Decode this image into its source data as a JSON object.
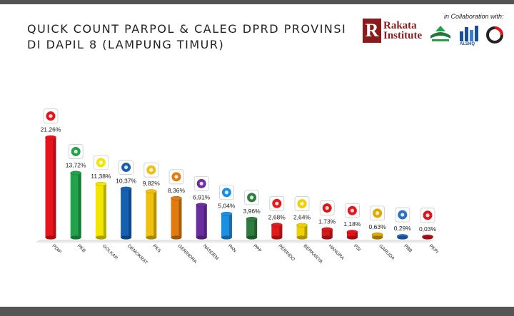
{
  "title": {
    "line1": "QUICK COUNT PARPOL & CALEG DPRD PROVINSI",
    "line2": "DI DAPIL 8 (LAMPUNG TIMUR)"
  },
  "branding": {
    "rakata_initial": "R",
    "rakata_line1": "Rakata",
    "rakata_line2": "Institute",
    "collaboration": "in Collaboration with:",
    "partner_small_text": "ALSHQ"
  },
  "chart_data": {
    "type": "bar",
    "title": "QUICK COUNT PARPOL & CALEG DPRD PROVINSI DI DAPIL 8 (LAMPUNG TIMUR)",
    "categories": [
      "PDIP",
      "PKB",
      "GOLKAR",
      "DEMOKRAT",
      "PKS",
      "GERINDRA",
      "NASDEM",
      "PAN",
      "PPP",
      "PERINDO",
      "BERKARYA",
      "HANURA",
      "PSI",
      "GARUDA",
      "PBB",
      "PKPI"
    ],
    "values": [
      21.26,
      13.72,
      11.38,
      10.37,
      9.82,
      8.36,
      6.91,
      5.04,
      3.96,
      2.68,
      2.64,
      1.73,
      1.18,
      0.63,
      0.29,
      0.03
    ],
    "labels": [
      "21,26%",
      "13,72%",
      "11,38%",
      "10,37%",
      "9,82%",
      "8,36%",
      "6,91%",
      "5,04%",
      "3,96%",
      "2,68%",
      "2,64%",
      "1,73%",
      "1,18%",
      "0,63%",
      "0,29%",
      "0,03%"
    ],
    "colors": [
      "#e8141b",
      "#22a24a",
      "#f2e600",
      "#1560b3",
      "#f0c010",
      "#e07b10",
      "#6a2ea0",
      "#1d8fe0",
      "#2e7d3e",
      "#e11a1a",
      "#f0d000",
      "#d61a1a",
      "#e8141b",
      "#e0a800",
      "#2a6fcc",
      "#e0141b"
    ],
    "logo_icons": [
      "pdip-bull-icon",
      "pkb-icon",
      "golkar-tree-icon",
      "demokrat-icon",
      "pks-icon",
      "gerindra-garuda-icon",
      "nasdem-icon",
      "pan-sun-icon",
      "ppp-kaaba-icon",
      "perindo-icon",
      "berkarya-icon",
      "hanura-icon",
      "psi-icon",
      "garuda-icon",
      "pbb-crescent-icon",
      "pkpi-icon"
    ],
    "ylim": [
      0,
      22
    ],
    "grid": false,
    "legend": "none"
  }
}
